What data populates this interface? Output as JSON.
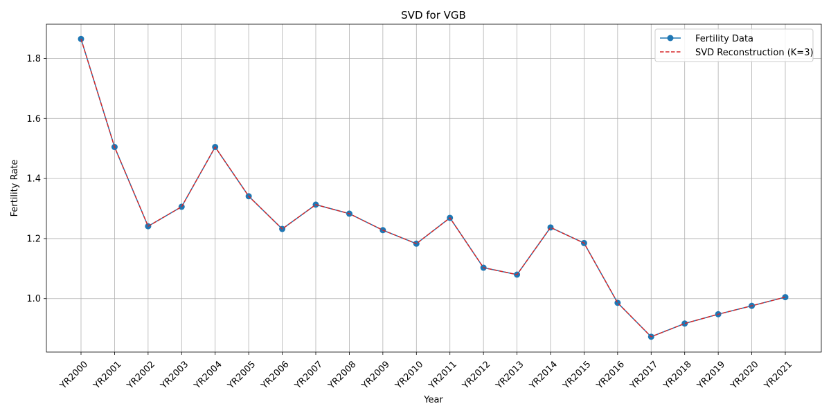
{
  "chart_data": {
    "type": "line",
    "title": "SVD for VGB",
    "xlabel": "Year",
    "ylabel": "Fertility Rate",
    "categories": [
      "YR2000",
      "YR2001",
      "YR2002",
      "YR2003",
      "YR2004",
      "YR2005",
      "YR2006",
      "YR2007",
      "YR2008",
      "YR2009",
      "YR2010",
      "YR2011",
      "YR2012",
      "YR2013",
      "YR2014",
      "YR2015",
      "YR2016",
      "YR2017",
      "YR2018",
      "YR2019",
      "YR2020",
      "YR2021"
    ],
    "ylim": [
      0.822,
      1.914
    ],
    "yticks": [
      1.0,
      1.2,
      1.4,
      1.6,
      1.8
    ],
    "ytick_labels": [
      "1.0",
      "1.2",
      "1.4",
      "1.6",
      "1.8"
    ],
    "grid": true,
    "legend_position": "top-right",
    "series": [
      {
        "name": "Fertility Data",
        "color": "#1f77b4",
        "style": "solid",
        "marker": "circle",
        "values": [
          1.865,
          1.505,
          1.241,
          1.306,
          1.505,
          1.341,
          1.232,
          1.313,
          1.283,
          1.228,
          1.183,
          1.269,
          1.103,
          1.08,
          1.237,
          1.185,
          0.986,
          0.873,
          0.917,
          0.948,
          0.976,
          1.005
        ]
      },
      {
        "name": "SVD Reconstruction (K=3)",
        "color": "#d62728",
        "style": "dashed",
        "marker": "none",
        "values": [
          1.865,
          1.505,
          1.241,
          1.306,
          1.505,
          1.341,
          1.232,
          1.313,
          1.283,
          1.228,
          1.183,
          1.269,
          1.103,
          1.08,
          1.237,
          1.185,
          0.986,
          0.873,
          0.917,
          0.948,
          0.976,
          1.005
        ]
      }
    ]
  }
}
